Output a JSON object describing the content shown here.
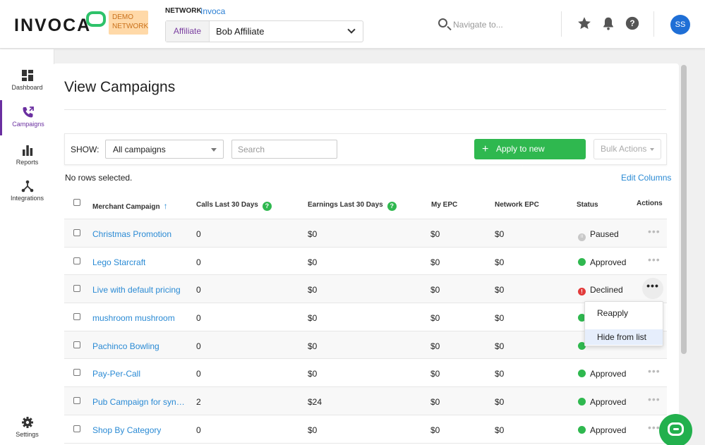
{
  "header": {
    "logo": "INVOCA",
    "demo_badge": [
      "DEMO",
      "NETWORK"
    ],
    "network_label": "NETWORK",
    "network_name": "Invoca",
    "affiliate_tag": "Affiliate",
    "affiliate_value": "Bob Affiliate",
    "search_placeholder": "Navigate to...",
    "avatar_initials": "SS"
  },
  "sidebar": {
    "items": [
      {
        "label": "Dashboard",
        "icon": "dashboard-icon"
      },
      {
        "label": "Campaigns",
        "icon": "campaigns-icon"
      },
      {
        "label": "Reports",
        "icon": "reports-icon"
      },
      {
        "label": "Integrations",
        "icon": "integrations-icon"
      }
    ],
    "settings_label": "Settings"
  },
  "page": {
    "title": "View Campaigns"
  },
  "filters": {
    "show_label": "SHOW:",
    "campaign_select": "All campaigns",
    "search_placeholder": "Search",
    "apply_button": "Apply to new campaigns",
    "bulk_actions": "Bulk Actions"
  },
  "table_meta": {
    "no_rows_selected": "No rows selected.",
    "edit_columns": "Edit Columns"
  },
  "table": {
    "headers": [
      "Merchant Campaign",
      "Calls Last 30 Days",
      "Earnings Last 30 Days",
      "My EPC",
      "Network EPC",
      "Status",
      "Actions"
    ],
    "rows": [
      {
        "campaign": "Christmas Promotion",
        "calls": "0",
        "earnings": "$0",
        "my_epc": "$0",
        "network_epc": "$0",
        "status": "Paused"
      },
      {
        "campaign": "Lego Starcraft",
        "calls": "0",
        "earnings": "$0",
        "my_epc": "$0",
        "network_epc": "$0",
        "status": "Approved"
      },
      {
        "campaign": "Live with default pricing",
        "calls": "0",
        "earnings": "$0",
        "my_epc": "$0",
        "network_epc": "$0",
        "status": "Declined"
      },
      {
        "campaign": "mushroom mushroom",
        "calls": "0",
        "earnings": "$0",
        "my_epc": "$0",
        "network_epc": "$0",
        "status": ""
      },
      {
        "campaign": "Pachinco Bowling",
        "calls": "0",
        "earnings": "$0",
        "my_epc": "$0",
        "network_epc": "$0",
        "status": ""
      },
      {
        "campaign": "Pay-Per-Call",
        "calls": "0",
        "earnings": "$0",
        "my_epc": "$0",
        "network_epc": "$0",
        "status": "Approved"
      },
      {
        "campaign": "Pub Campaign for syndic...",
        "calls": "2",
        "earnings": "$24",
        "my_epc": "$0",
        "network_epc": "$0",
        "status": "Approved"
      },
      {
        "campaign": "Shop By Category",
        "calls": "0",
        "earnings": "$0",
        "my_epc": "$0",
        "network_epc": "$0",
        "status": "Approved"
      }
    ]
  },
  "actions_menu": {
    "items": [
      "Reapply",
      "Hide from list"
    ]
  },
  "colors": {
    "accent_green": "#2fb84f",
    "link_blue": "#2a8ad4",
    "active_purple": "#6a2fa0",
    "paused_gray": "#c8c8c8",
    "declined_red": "#e23b3b"
  }
}
